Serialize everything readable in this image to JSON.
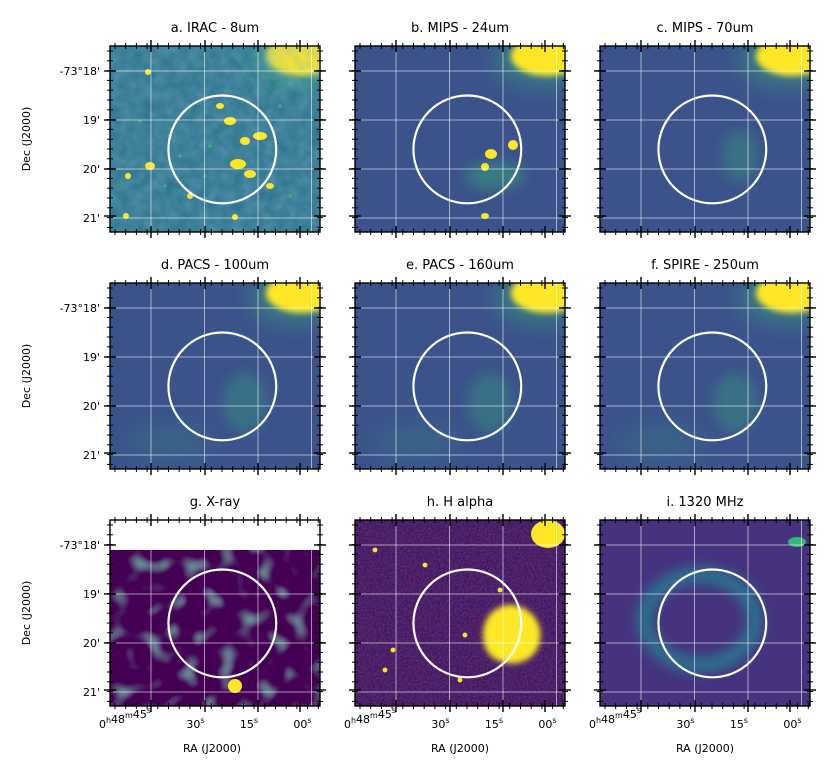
{
  "chart_data": {
    "type": "image",
    "x_label": "RA (J2000)",
    "y_label": "Dec (J2000)",
    "x_ticks": [
      {
        "h": "0",
        "m": "48",
        "s": "45"
      },
      {
        "h": "",
        "m": "",
        "s": "30"
      },
      {
        "h": "",
        "m": "",
        "s": "15"
      },
      {
        "h": "",
        "m": "",
        "s": "00"
      }
    ],
    "y_ticks": [
      "-73°18'",
      "19'",
      "20'",
      "21'"
    ],
    "circle": {
      "center_ra_s": 25,
      "center_dec_arcmin": 19.6,
      "radius_arcmin": 1.1
    },
    "panels": [
      {
        "id": "a",
        "title": "a. IRAC - 8um"
      },
      {
        "id": "b",
        "title": "b. MIPS - 24um"
      },
      {
        "id": "c",
        "title": "c. MIPS - 70um"
      },
      {
        "id": "d",
        "title": "d. PACS - 100um"
      },
      {
        "id": "e",
        "title": "e. PACS - 160um"
      },
      {
        "id": "f",
        "title": "f. SPIRE - 250um"
      },
      {
        "id": "g",
        "title": "g. X-ray"
      },
      {
        "id": "h",
        "title": "h. H alpha"
      },
      {
        "id": "i",
        "title": "i. 1320 MHz"
      }
    ]
  },
  "colors": {
    "background_dark": "#3b528b",
    "background_mid": "#2c728e",
    "green": "#35b779",
    "yellow": "#fde725",
    "purple": "#46327e",
    "deep_purple": "#440154",
    "circle": "#ffffff",
    "grid": "#ffffff"
  }
}
